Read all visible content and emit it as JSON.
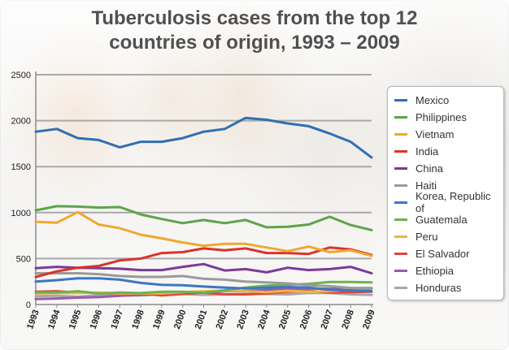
{
  "chart_data": {
    "type": "line",
    "title": "Tuberculosis cases from the top 12\ncountries of origin, 1993 – 2009",
    "xlabel": "",
    "ylabel": "",
    "ylim": [
      0,
      2500
    ],
    "yticks": [
      0,
      500,
      1000,
      1500,
      2000,
      2500
    ],
    "grid": true,
    "legend_position": "right",
    "categories": [
      "1993",
      "1994",
      "1995",
      "1996",
      "1997",
      "1998",
      "1999",
      "2000",
      "2001",
      "2002",
      "2003",
      "2004",
      "2005",
      "2006",
      "2007",
      "2008",
      "2009"
    ],
    "series": [
      {
        "name": "Mexico",
        "color": "#2f6fb3",
        "values": [
          1880,
          1910,
          1810,
          1790,
          1710,
          1770,
          1770,
          1810,
          1880,
          1910,
          2030,
          2010,
          1970,
          1940,
          1860,
          1770,
          1600
        ]
      },
      {
        "name": "Philippines",
        "color": "#5fa34a",
        "values": [
          1025,
          1070,
          1065,
          1055,
          1060,
          980,
          930,
          885,
          920,
          885,
          920,
          840,
          845,
          870,
          955,
          865,
          810
        ]
      },
      {
        "name": "Vietnam",
        "color": "#f0a830",
        "values": [
          900,
          890,
          1005,
          870,
          830,
          760,
          720,
          675,
          640,
          660,
          660,
          620,
          580,
          630,
          570,
          590,
          530
        ]
      },
      {
        "name": "India",
        "color": "#d9342b",
        "values": [
          300,
          360,
          400,
          420,
          480,
          500,
          560,
          570,
          610,
          590,
          610,
          560,
          560,
          550,
          620,
          600,
          540
        ]
      },
      {
        "name": "China",
        "color": "#7b3a96",
        "values": [
          395,
          410,
          400,
          395,
          390,
          375,
          375,
          410,
          440,
          370,
          385,
          350,
          400,
          375,
          385,
          410,
          340
        ]
      },
      {
        "name": "Haiti",
        "color": "#9a9a9a",
        "values": [
          340,
          340,
          340,
          330,
          310,
          300,
          300,
          310,
          280,
          270,
          250,
          240,
          230,
          210,
          200,
          180,
          180
        ]
      },
      {
        "name": "Korea, Republic of",
        "color": "#3b78c2",
        "values": [
          250,
          265,
          285,
          285,
          270,
          235,
          215,
          210,
          195,
          185,
          175,
          185,
          190,
          185,
          160,
          155,
          145
        ]
      },
      {
        "name": "Guatemala",
        "color": "#6db34e",
        "values": [
          130,
          130,
          145,
          120,
          130,
          125,
          140,
          140,
          130,
          155,
          185,
          205,
          215,
          225,
          245,
          245,
          240
        ]
      },
      {
        "name": "Peru",
        "color": "#f2b440",
        "values": [
          120,
          125,
          125,
          130,
          120,
          120,
          120,
          135,
          145,
          150,
          145,
          135,
          150,
          140,
          145,
          165,
          145
        ]
      },
      {
        "name": "El Salvador",
        "color": "#e0473a",
        "values": [
          140,
          145,
          130,
          125,
          120,
          120,
          100,
          115,
          130,
          110,
          110,
          120,
          140,
          150,
          130,
          135,
          140
        ]
      },
      {
        "name": "Ethiopia",
        "color": "#9b5ab0",
        "values": [
          60,
          65,
          75,
          80,
          95,
          105,
          115,
          125,
          135,
          145,
          145,
          160,
          170,
          175,
          170,
          175,
          175
        ]
      },
      {
        "name": "Honduras",
        "color": "#a8a8a8",
        "values": [
          90,
          95,
          85,
          100,
          100,
          100,
          110,
          115,
          105,
          110,
          115,
          115,
          110,
          125,
          125,
          110,
          105
        ]
      }
    ]
  }
}
